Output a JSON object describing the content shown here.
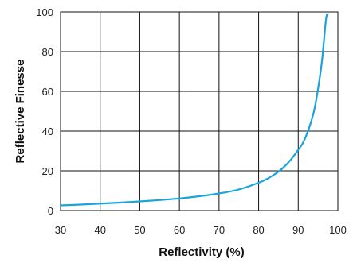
{
  "chart_data": {
    "type": "line",
    "title": "",
    "xlabel": "Reflectivity (%)",
    "ylabel": "Reflective Finesse",
    "xlim": [
      30,
      100
    ],
    "ylim": [
      0,
      100
    ],
    "x_ticks": [
      "30",
      "40",
      "50",
      "60",
      "70",
      "80",
      "90",
      "100"
    ],
    "y_ticks": [
      "0",
      "20",
      "40",
      "60",
      "80",
      "100"
    ],
    "grid": true,
    "legend": "none",
    "line_color": "#1aa3dd",
    "series": [
      {
        "x": [
          30,
          35,
          40,
          45,
          50,
          55,
          60,
          65,
          70,
          75,
          80,
          82,
          84,
          86,
          88,
          90,
          91,
          92,
          93,
          94,
          95,
          96,
          97,
          97.5
        ],
        "y": [
          2.6,
          3.0,
          3.5,
          4.0,
          4.6,
          5.3,
          6.1,
          7.2,
          8.6,
          10.6,
          14.0,
          15.8,
          18.2,
          21.2,
          25.3,
          30.6,
          33.4,
          37.6,
          43.2,
          50.3,
          61.2,
          75.5,
          96.1,
          99.0
        ]
      }
    ]
  }
}
